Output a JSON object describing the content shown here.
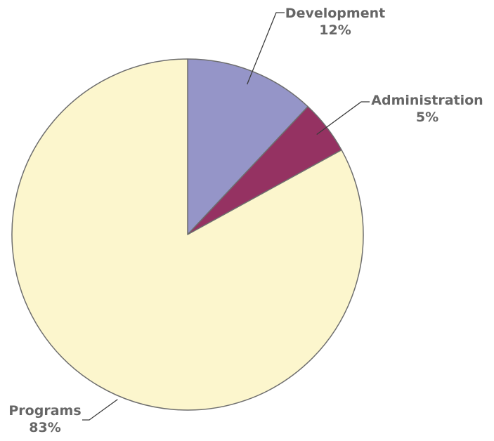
{
  "chart_data": {
    "type": "pie",
    "title": "",
    "slices": [
      {
        "label": "Development",
        "value": 12,
        "display": "12%",
        "color": "#9595c8"
      },
      {
        "label": "Administration",
        "value": 5,
        "display": "5%",
        "color": "#953262"
      },
      {
        "label": "Programs",
        "value": 83,
        "display": "83%",
        "color": "#fcf6cd"
      }
    ],
    "start_angle_deg": 0,
    "direction": "clockwise",
    "label_style": "outside-with-leader-lines",
    "border_color": "#6e6e6e",
    "legend": "none"
  }
}
